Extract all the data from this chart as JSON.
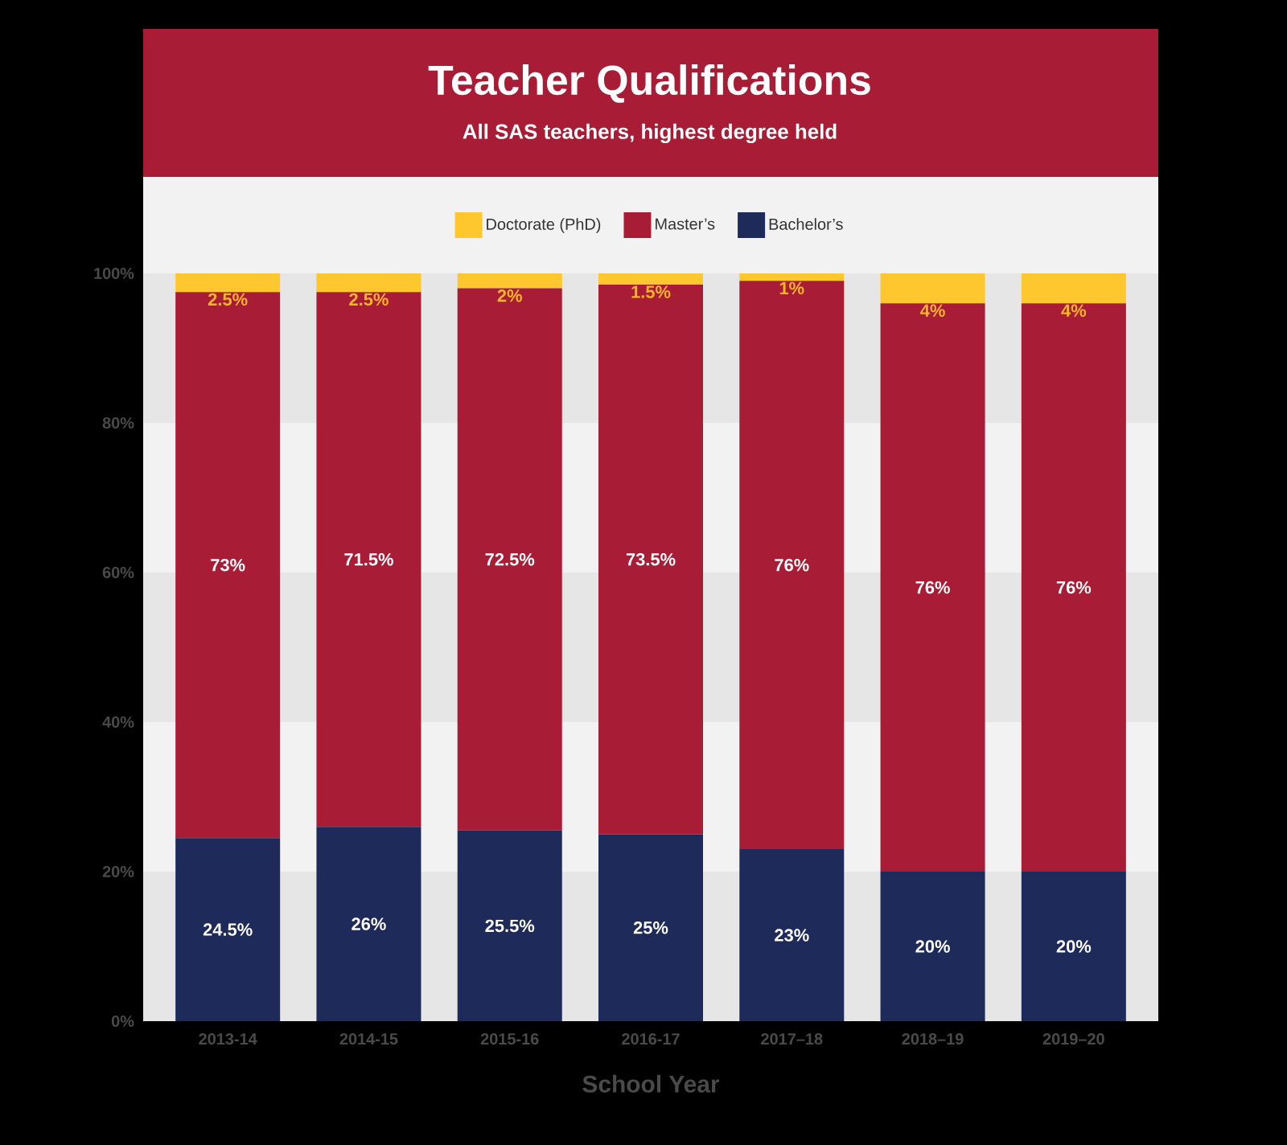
{
  "chart_data": {
    "type": "bar",
    "stacked": true,
    "title": "Teacher Qualifications",
    "subtitle": "All SAS teachers, highest degree held",
    "xlabel": "School Year",
    "categories": [
      "2013-14",
      "2014-15",
      "2015-16",
      "2016-17",
      "2017–18",
      "2018–19",
      "2019–20"
    ],
    "series": [
      {
        "name": "Bachelor’s",
        "color": "#1e2a5a",
        "values": [
          24.5,
          26,
          25.5,
          25,
          23,
          20,
          20
        ],
        "value_labels": [
          "24.5%",
          "26%",
          "25.5%",
          "25%",
          "23%",
          "20%",
          "20%"
        ]
      },
      {
        "name": "Master’s",
        "color": "#a81c35",
        "values": [
          73,
          71.5,
          72.5,
          73.5,
          76,
          76,
          76
        ],
        "value_labels": [
          "73%",
          "71.5%",
          "72.5%",
          "73.5%",
          "76%",
          "76%",
          "76%"
        ]
      },
      {
        "name": "Doctorate (PhD)",
        "color": "#fec72e",
        "values": [
          2.5,
          2.5,
          2,
          1.5,
          1,
          4,
          4
        ],
        "value_labels": [
          "2.5%",
          "2.5%",
          "2%",
          "1.5%",
          "1%",
          "4%",
          "4%"
        ]
      }
    ],
    "ylim": [
      0,
      100
    ],
    "yticks": [
      {
        "value": 0,
        "label": "0%"
      },
      {
        "value": 20,
        "label": "20%"
      },
      {
        "value": 40,
        "label": "40%"
      },
      {
        "value": 60,
        "label": "60%"
      },
      {
        "value": 80,
        "label": "80%"
      },
      {
        "value": 100,
        "label": "100%"
      }
    ],
    "bands": [
      {
        "axis": "y",
        "from": 0,
        "to": 20,
        "color": "#e6e6e6"
      },
      {
        "axis": "y",
        "from": 40,
        "to": 60,
        "color": "#e6e6e6"
      },
      {
        "axis": "y",
        "from": 80,
        "to": 100,
        "color": "#e6e6e6"
      }
    ],
    "legend": "top"
  }
}
